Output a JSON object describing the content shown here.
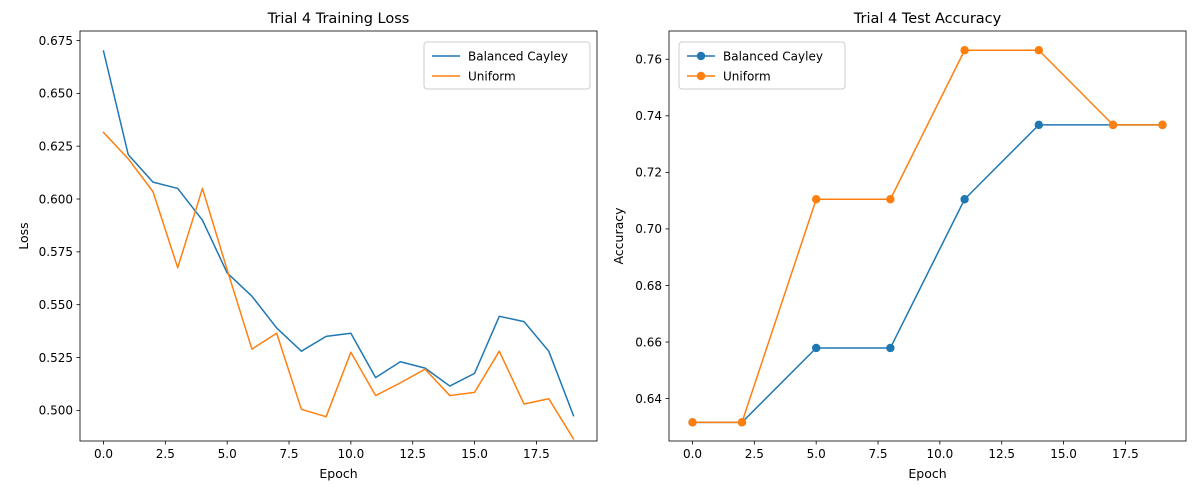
{
  "colors": {
    "series1": "#1f77b4",
    "series2": "#ff7f0e"
  },
  "chart_data": [
    {
      "type": "line",
      "title": "Trial 4 Training Loss",
      "xlabel": "Epoch",
      "ylabel": "Loss",
      "xlim": [
        -0.95,
        19.95
      ],
      "ylim": [
        0.4855,
        0.6795
      ],
      "xticks": [
        0.0,
        2.5,
        5.0,
        7.5,
        10.0,
        12.5,
        15.0,
        17.5
      ],
      "xtick_labels": [
        "0.0",
        "2.5",
        "5.0",
        "7.5",
        "10.0",
        "12.5",
        "15.0",
        "17.5"
      ],
      "yticks": [
        0.5,
        0.525,
        0.55,
        0.575,
        0.6,
        0.625,
        0.65,
        0.675
      ],
      "ytick_labels": [
        "0.500",
        "0.525",
        "0.550",
        "0.575",
        "0.600",
        "0.625",
        "0.650",
        "0.675"
      ],
      "markers": false,
      "legend_position": "upper right",
      "grid": false,
      "x": [
        0,
        1,
        2,
        3,
        4,
        5,
        6,
        7,
        8,
        9,
        10,
        11,
        12,
        13,
        14,
        15,
        16,
        17,
        18,
        19
      ],
      "series": [
        {
          "name": "Balanced Cayley",
          "color": "#1f77b4",
          "values": [
            0.67,
            0.621,
            0.608,
            0.605,
            0.59,
            0.565,
            0.554,
            0.539,
            0.528,
            0.535,
            0.5365,
            0.5155,
            0.523,
            0.52,
            0.5115,
            0.5175,
            0.5445,
            0.542,
            0.528,
            0.4975
          ]
        },
        {
          "name": "Uniform",
          "color": "#ff7f0e",
          "values": [
            0.6315,
            0.619,
            0.6035,
            0.5675,
            0.605,
            0.5665,
            0.529,
            0.5365,
            0.5005,
            0.497,
            0.5275,
            0.507,
            0.513,
            0.5195,
            0.507,
            0.5085,
            0.528,
            0.503,
            0.5055,
            0.4865
          ]
        }
      ]
    },
    {
      "type": "line",
      "title": "Trial 4 Test Accuracy",
      "xlabel": "Epoch",
      "ylabel": "Accuracy",
      "xlim": [
        -0.95,
        19.95
      ],
      "ylim": [
        0.625,
        0.77
      ],
      "xticks": [
        0.0,
        2.5,
        5.0,
        7.5,
        10.0,
        12.5,
        15.0,
        17.5
      ],
      "xtick_labels": [
        "0.0",
        "2.5",
        "5.0",
        "7.5",
        "10.0",
        "12.5",
        "15.0",
        "17.5"
      ],
      "yticks": [
        0.64,
        0.66,
        0.68,
        0.7,
        0.72,
        0.74,
        0.76
      ],
      "ytick_labels": [
        "0.64",
        "0.66",
        "0.68",
        "0.70",
        "0.72",
        "0.74",
        "0.76"
      ],
      "markers": true,
      "legend_position": "upper left",
      "grid": false,
      "x": [
        0,
        2,
        5,
        8,
        11,
        14,
        17,
        19
      ],
      "series": [
        {
          "name": "Balanced Cayley",
          "color": "#1f77b4",
          "values": [
            0.6316,
            0.6316,
            0.6579,
            0.6579,
            0.7105,
            0.7368,
            0.7368,
            0.7368
          ]
        },
        {
          "name": "Uniform",
          "color": "#ff7f0e",
          "values": [
            0.6316,
            0.6316,
            0.7105,
            0.7105,
            0.7632,
            0.7632,
            0.7368,
            0.7368
          ]
        }
      ]
    }
  ]
}
